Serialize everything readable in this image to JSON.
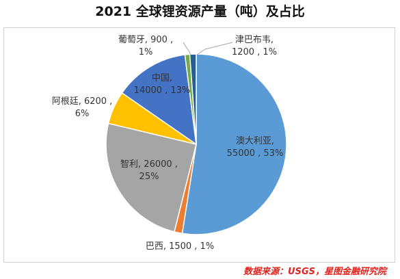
{
  "title": "2021 全球锂资源产量（吨）及占比",
  "source": "数据来源：USGS，星图金融研究院",
  "chart_data": {
    "type": "pie",
    "title": "2021 全球锂资源产量（吨）及占比",
    "start_angle_deg": 0,
    "direction": "clockwise",
    "slices": [
      {
        "name": "澳大利亚",
        "value": 55000,
        "percent": "53%",
        "color": "#5b9bd5",
        "label_l1": "澳大利亚,",
        "label_l2": "55000 , 53%"
      },
      {
        "name": "巴西",
        "value": 1500,
        "percent": "1%",
        "color": "#ed7d31",
        "label_l1": "巴西, 1500 , 1%",
        "label_l2": ""
      },
      {
        "name": "智利",
        "value": 26000,
        "percent": "25%",
        "color": "#a5a5a5",
        "label_l1": "智利, 26000 ,",
        "label_l2": "25%"
      },
      {
        "name": "阿根廷",
        "value": 6200,
        "percent": "6%",
        "color": "#ffc000",
        "label_l1": "阿根廷, 6200 ,",
        "label_l2": "6%"
      },
      {
        "name": "中国",
        "value": 14000,
        "percent": "13%",
        "color": "#4472c4",
        "label_l1": "中国,",
        "label_l2": "14000 , 13%"
      },
      {
        "name": "葡萄牙",
        "value": 900,
        "percent": "1%",
        "color": "#70ad47",
        "label_l1": "葡萄牙, 900 ,",
        "label_l2": "1%"
      },
      {
        "name": "津巴布韦",
        "value": 1200,
        "percent": "1%",
        "color": "#255e91",
        "label_l1": "津巴布韦,",
        "label_l2": "1200 , 1%"
      }
    ]
  }
}
